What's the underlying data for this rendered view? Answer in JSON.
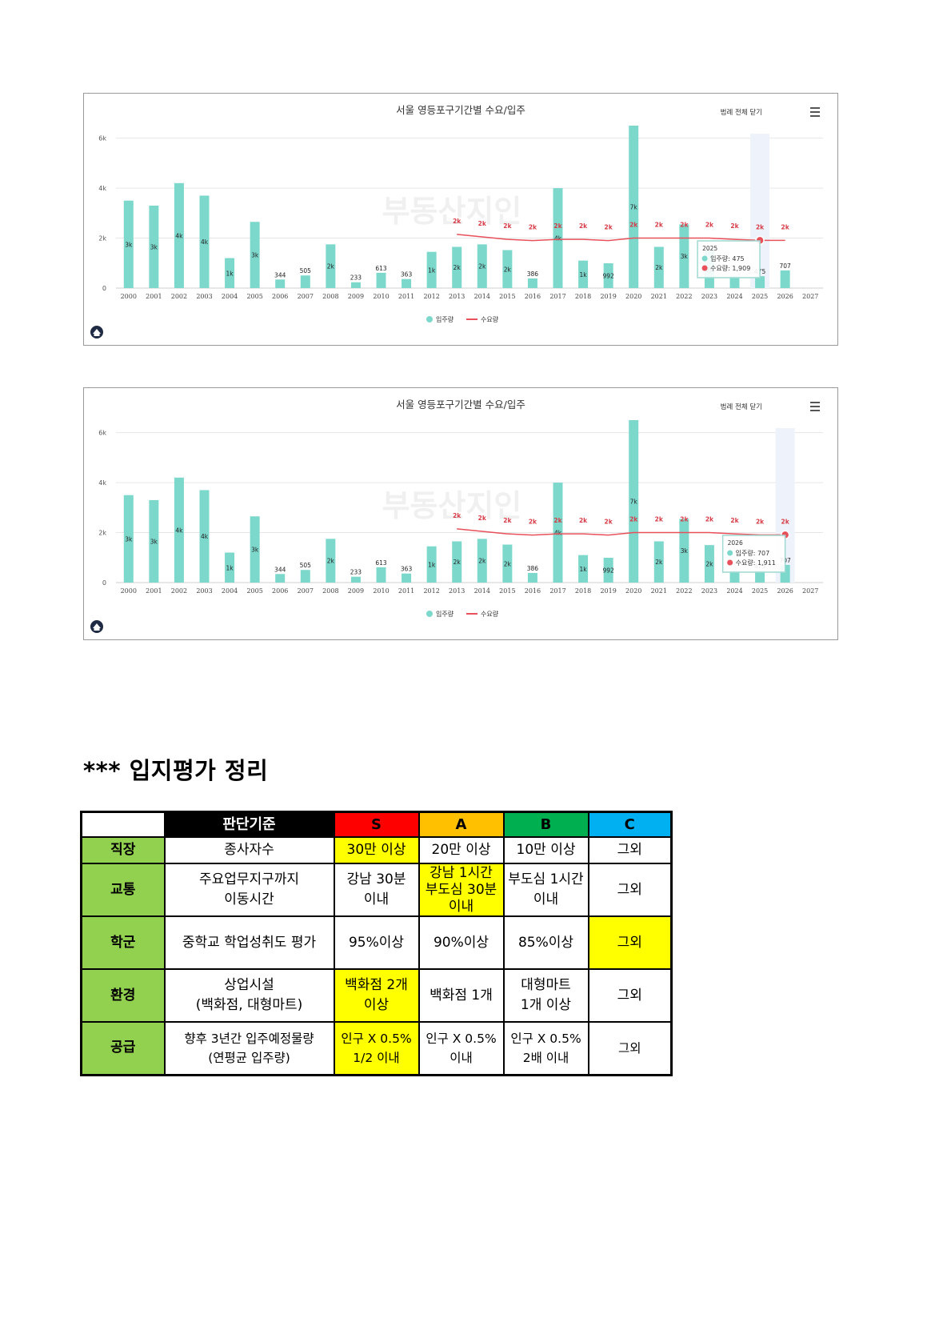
{
  "charts": [
    {
      "title": "서울 영등포구기간별 수요/입주",
      "legend_toggle": "범례 전체 닫기",
      "watermark": "부동산지인",
      "tooltip": {
        "year": "2025",
        "supply_label": "입주량",
        "supply_value": "475",
        "demand_label": "수요량",
        "demand_value": "1,909"
      },
      "highlight_year": "2025"
    },
    {
      "title": "서울 영등포구기간별 수요/입주",
      "legend_toggle": "범례 전체 닫기",
      "watermark": "부동산지인",
      "tooltip": {
        "year": "2026",
        "supply_label": "입주량",
        "supply_value": "707",
        "demand_label": "수요량",
        "demand_value": "1,911"
      },
      "highlight_year": "2026"
    }
  ],
  "chart_data": {
    "type": "bar",
    "categories": [
      "2000",
      "2001",
      "2002",
      "2003",
      "2004",
      "2005",
      "2006",
      "2007",
      "2008",
      "2009",
      "2010",
      "2011",
      "2012",
      "2013",
      "2014",
      "2015",
      "2016",
      "2017",
      "2018",
      "2019",
      "2020",
      "2021",
      "2022",
      "2023",
      "2024",
      "2025",
      "2026",
      "2027"
    ],
    "series": [
      {
        "name": "입주량",
        "color": "#7dd8cc",
        "values": [
          3500,
          3300,
          4200,
          3700,
          1200,
          2650,
          344,
          505,
          1750,
          233,
          613,
          363,
          1450,
          1650,
          1750,
          1520,
          386,
          4000,
          1100,
          992,
          6500,
          1650,
          2550,
          1500,
          475,
          475,
          707,
          null
        ],
        "labels": [
          "3k",
          "3k",
          "4k",
          "4k",
          "1k",
          "3k",
          "344",
          "505",
          "2k",
          "233",
          "613",
          "363",
          "1k",
          "2k",
          "2k",
          "2k",
          "386",
          "4k",
          "1k",
          "992",
          "7k",
          "2k",
          "3k",
          "2k",
          "",
          "475",
          "707",
          ""
        ]
      },
      {
        "name": "수요량",
        "color": "#e8505b",
        "values": [
          null,
          null,
          null,
          null,
          null,
          null,
          null,
          null,
          null,
          null,
          null,
          null,
          null,
          2150,
          2050,
          1950,
          1900,
          1950,
          1950,
          1900,
          2000,
          2000,
          2000,
          2000,
          1950,
          1909,
          1911,
          null
        ],
        "labels": [
          "",
          "",
          "",
          "",
          "",
          "",
          "",
          "",
          "",
          "",
          "",
          "",
          "",
          "2k",
          "2k",
          "2k",
          "2k",
          "2k",
          "2k",
          "2k",
          "2k",
          "2k",
          "2k",
          "2k",
          "2k",
          "2k",
          "2k",
          ""
        ]
      }
    ],
    "y_ticks": [
      "0",
      "2k",
      "4k",
      "6k"
    ],
    "ylim": [
      0,
      6500
    ],
    "grid": true,
    "legend": "bottom"
  },
  "section": {
    "title": "*** 입지평가 정리"
  },
  "table": {
    "header": [
      "",
      "판단기준",
      "S",
      "A",
      "B",
      "C"
    ],
    "header_colors": [
      "#ffffff",
      "#000000",
      "#ff0000",
      "#ffc000",
      "#00b050",
      "#00b0f0"
    ],
    "rows": [
      {
        "label": "직장",
        "criterion": [
          "종사자수"
        ],
        "S": [
          "30만 이상"
        ],
        "A": [
          "20만 이상"
        ],
        "B": [
          "10만 이상"
        ],
        "C": [
          "그외"
        ]
      },
      {
        "label": "교통",
        "criterion": [
          "주요업무지구까지",
          "이동시간"
        ],
        "S": [
          "강남 30분",
          "이내"
        ],
        "A": [
          "강남 1시간",
          "부도심 30분",
          "이내"
        ],
        "B": [
          "부도심 1시간",
          "이내"
        ],
        "C": [
          "그외"
        ]
      },
      {
        "label": "학군",
        "criterion": [
          "중학교 학업성취도 평가"
        ],
        "S": [
          "95%이상"
        ],
        "A": [
          "90%이상"
        ],
        "B": [
          "85%이상"
        ],
        "C": [
          "그외"
        ]
      },
      {
        "label": "환경",
        "criterion": [
          "상업시설",
          "(백화점, 대형마트)"
        ],
        "S": [
          "백화점 2개",
          "이상"
        ],
        "A": [
          "백화점 1개"
        ],
        "B": [
          "대형마트",
          "1개 이상"
        ],
        "C": [
          "그외"
        ]
      },
      {
        "label": "공급",
        "criterion": [
          "향후 3년간 입주예정물량",
          "(연평균 입주량)"
        ],
        "S": [
          "인구 X 0.5%",
          "1/2 이내"
        ],
        "A": [
          "인구 X 0.5%",
          "이내"
        ],
        "B": [
          "인구 X 0.5%",
          "2배 이내"
        ],
        "C": [
          "그외"
        ]
      }
    ],
    "highlight_color": "#ffff00"
  }
}
